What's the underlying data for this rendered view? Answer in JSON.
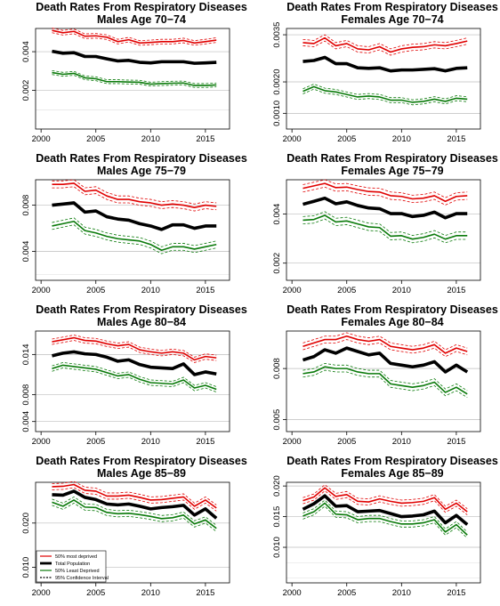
{
  "chart_data": [
    {
      "type": "line",
      "title": "Death Rates From Respiratory Diseases",
      "subtitle": "Males Age 70−74",
      "x": [
        2001,
        2002,
        2003,
        2004,
        2005,
        2006,
        2007,
        2008,
        2009,
        2010,
        2011,
        2012,
        2013,
        2014,
        2015,
        2016
      ],
      "xticks": [
        "2000",
        "2005",
        "2010",
        "2015"
      ],
      "ylim": [
        0,
        0.0052
      ],
      "yticks": [
        "0.002",
        "0.004"
      ],
      "series": [
        {
          "name": "50% most deprived",
          "color": "#e00000",
          "values": [
            0.0051,
            0.00498,
            0.00505,
            0.0048,
            0.00482,
            0.00475,
            0.00452,
            0.00462,
            0.00445,
            0.00448,
            0.00452,
            0.00452,
            0.00458,
            0.00445,
            0.00452,
            0.0046
          ],
          "ci": 0.00012
        },
        {
          "name": "Total Population",
          "color": "#000000",
          "values": [
            0.00402,
            0.00392,
            0.00395,
            0.00375,
            0.00375,
            0.00363,
            0.00352,
            0.00355,
            0.00345,
            0.00342,
            0.00348,
            0.00348,
            0.00348,
            0.0034,
            0.00342,
            0.00345
          ],
          "ci": 0
        },
        {
          "name": "50% Least Deprived",
          "color": "#0a7a0a",
          "values": [
            0.00292,
            0.00283,
            0.00288,
            0.00265,
            0.0026,
            0.00245,
            0.00245,
            0.00243,
            0.00242,
            0.00232,
            0.00235,
            0.00237,
            0.00238,
            0.00225,
            0.00225,
            0.00228
          ],
          "ci": 0.0001
        }
      ]
    },
    {
      "type": "line",
      "title": "Death Rates From Respiratory Diseases",
      "subtitle": "Females Age 70−74",
      "x": [
        2001,
        2002,
        2003,
        2004,
        2005,
        2006,
        2007,
        2008,
        2009,
        2010,
        2011,
        2012,
        2013,
        2014,
        2015,
        2016
      ],
      "xticks": [
        "2000",
        "2005",
        "2010",
        "2015"
      ],
      "ylim": [
        0.0005,
        0.0037
      ],
      "yticks": [
        "0.0010",
        "0.0020",
        "0.0035"
      ],
      "series": [
        {
          "name": "50% most deprived",
          "color": "#e00000",
          "values": [
            0.00325,
            0.00322,
            0.0034,
            0.00315,
            0.00322,
            0.00305,
            0.00302,
            0.00312,
            0.00295,
            0.00305,
            0.0031,
            0.00312,
            0.00318,
            0.00315,
            0.00322,
            0.0033
          ],
          "ci": 0.0001
        },
        {
          "name": "Total Population",
          "color": "#000000",
          "values": [
            0.00265,
            0.00268,
            0.00278,
            0.00258,
            0.00258,
            0.00245,
            0.00243,
            0.00245,
            0.00235,
            0.00238,
            0.00238,
            0.0024,
            0.00242,
            0.00235,
            0.00243,
            0.00245
          ],
          "ci": 0
        },
        {
          "name": "50% Least Deprived",
          "color": "#0a7a0a",
          "values": [
            0.0017,
            0.00185,
            0.00172,
            0.00168,
            0.0016,
            0.00152,
            0.00155,
            0.00152,
            0.00142,
            0.00142,
            0.00135,
            0.00138,
            0.00145,
            0.00138,
            0.00148,
            0.00145
          ],
          "ci": 8e-05
        }
      ]
    },
    {
      "type": "line",
      "title": "Death Rates From Respiratory Diseases",
      "subtitle": "Males Age 75−79",
      "x": [
        2001,
        2002,
        2003,
        2004,
        2005,
        2006,
        2007,
        2008,
        2009,
        2010,
        2011,
        2012,
        2013,
        2014,
        2015,
        2016
      ],
      "xticks": [
        "2000",
        "2005",
        "2010",
        "2015"
      ],
      "ylim": [
        0.0015,
        0.0102
      ],
      "yticks": [
        "0.004",
        "0.008"
      ],
      "series": [
        {
          "name": "50% most deprived",
          "color": "#e00000",
          "values": [
            0.0098,
            0.0098,
            0.0099,
            0.0092,
            0.0093,
            0.0088,
            0.0085,
            0.0085,
            0.0083,
            0.0082,
            0.008,
            0.0081,
            0.008,
            0.0078,
            0.008,
            0.0079
          ],
          "ci": 0.0003
        },
        {
          "name": "Total Population",
          "color": "#000000",
          "values": [
            0.008,
            0.0081,
            0.0082,
            0.0074,
            0.0075,
            0.007,
            0.0068,
            0.0067,
            0.0064,
            0.0062,
            0.0059,
            0.0063,
            0.0063,
            0.006,
            0.0062,
            0.0062
          ],
          "ci": 0
        },
        {
          "name": "50% Least Deprived",
          "color": "#0a7a0a",
          "values": [
            0.0062,
            0.0064,
            0.0066,
            0.0058,
            0.0056,
            0.0053,
            0.0051,
            0.005,
            0.0049,
            0.0046,
            0.0041,
            0.0044,
            0.0044,
            0.0042,
            0.0044,
            0.0046
          ],
          "ci": 0.0003
        }
      ]
    },
    {
      "type": "line",
      "title": "Death Rates From Respiratory Diseases",
      "subtitle": "Females Age 75−79",
      "x": [
        2001,
        2002,
        2003,
        2004,
        2005,
        2006,
        2007,
        2008,
        2009,
        2010,
        2011,
        2012,
        2013,
        2014,
        2015,
        2016
      ],
      "xticks": [
        "2000",
        "2005",
        "2010",
        "2015"
      ],
      "ylim": [
        0.0013,
        0.0054
      ],
      "yticks": [
        "0.002",
        "0.004"
      ],
      "series": [
        {
          "name": "50% most deprived",
          "color": "#e00000",
          "values": [
            0.00505,
            0.00515,
            0.00525,
            0.00508,
            0.0051,
            0.005,
            0.00492,
            0.0049,
            0.00475,
            0.00472,
            0.00462,
            0.00465,
            0.00475,
            0.00452,
            0.00472,
            0.00475
          ],
          "ci": 0.00015
        },
        {
          "name": "Total Population",
          "color": "#000000",
          "values": [
            0.0044,
            0.00452,
            0.00465,
            0.00442,
            0.0045,
            0.00435,
            0.00425,
            0.00422,
            0.00402,
            0.00402,
            0.0039,
            0.00395,
            0.00408,
            0.00385,
            0.00402,
            0.00402
          ],
          "ci": 0
        },
        {
          "name": "50% Least Deprived",
          "color": "#0a7a0a",
          "values": [
            0.00375,
            0.00378,
            0.00395,
            0.00368,
            0.00372,
            0.0036,
            0.00348,
            0.00345,
            0.0031,
            0.00312,
            0.00298,
            0.00305,
            0.00318,
            0.00298,
            0.00312,
            0.00312
          ],
          "ci": 0.00015
        }
      ]
    },
    {
      "type": "line",
      "title": "Death Rates From Respiratory Diseases",
      "subtitle": "Males Age 80−84",
      "x": [
        2001,
        2002,
        2003,
        2004,
        2005,
        2006,
        2007,
        2008,
        2009,
        2010,
        2011,
        2012,
        2013,
        2014,
        2015,
        2016
      ],
      "xticks": [
        "2000",
        "2005",
        "2010",
        "2015"
      ],
      "ylim": [
        0.0025,
        0.0175
      ],
      "yticks": [
        "0.004",
        "0.008",
        "0.014"
      ],
      "series": [
        {
          "name": "50% most deprived",
          "color": "#e00000",
          "values": [
            0.0159,
            0.0162,
            0.0165,
            0.0161,
            0.016,
            0.0156,
            0.0153,
            0.0155,
            0.0147,
            0.0144,
            0.0142,
            0.0144,
            0.0142,
            0.0132,
            0.0137,
            0.0135
          ],
          "ci": 0.0004
        },
        {
          "name": "Total Population",
          "color": "#000000",
          "values": [
            0.0138,
            0.0142,
            0.0144,
            0.0141,
            0.014,
            0.0136,
            0.013,
            0.0132,
            0.0125,
            0.0121,
            0.012,
            0.0119,
            0.0126,
            0.011,
            0.0114,
            0.0111
          ],
          "ci": 0
        },
        {
          "name": "50% Least Deprived",
          "color": "#0a7a0a",
          "values": [
            0.0119,
            0.0124,
            0.0122,
            0.012,
            0.0118,
            0.0113,
            0.0108,
            0.011,
            0.0103,
            0.0098,
            0.0097,
            0.0096,
            0.0102,
            0.009,
            0.0094,
            0.0088
          ],
          "ci": 0.0004
        }
      ]
    },
    {
      "type": "line",
      "title": "Death Rates From Respiratory Diseases",
      "subtitle": "Females Age 80−84",
      "x": [
        2001,
        2002,
        2003,
        2004,
        2005,
        2006,
        2007,
        2008,
        2009,
        2010,
        2011,
        2012,
        2013,
        2014,
        2015,
        2016
      ],
      "xticks": [
        "2000",
        "2005",
        "2010",
        "2015"
      ],
      "ylim": [
        0.0043,
        0.0102
      ],
      "yticks": [
        "0.005",
        "0.008"
      ],
      "series": [
        {
          "name": "50% most deprived",
          "color": "#e00000",
          "values": [
            0.0093,
            0.0095,
            0.0097,
            0.0097,
            0.0099,
            0.0097,
            0.0096,
            0.0097,
            0.0093,
            0.0092,
            0.0091,
            0.0092,
            0.0094,
            0.0089,
            0.0092,
            0.009
          ],
          "ci": 0.0002
        },
        {
          "name": "Total Population",
          "color": "#000000",
          "values": [
            0.0085,
            0.0087,
            0.0091,
            0.0089,
            0.0092,
            0.009,
            0.0088,
            0.0089,
            0.0083,
            0.0082,
            0.0081,
            0.0082,
            0.0084,
            0.0078,
            0.0082,
            0.0078
          ],
          "ci": 0
        },
        {
          "name": "50% Least Deprived",
          "color": "#0a7a0a",
          "values": [
            0.0077,
            0.0078,
            0.0081,
            0.008,
            0.008,
            0.0078,
            0.0077,
            0.0077,
            0.0071,
            0.007,
            0.0069,
            0.007,
            0.0072,
            0.0066,
            0.0069,
            0.0065
          ],
          "ci": 0.0002
        }
      ]
    },
    {
      "type": "line",
      "title": "Death Rates From Respiratory Diseases",
      "subtitle": "Males Age 85−89",
      "x": [
        2001,
        2002,
        2003,
        2004,
        2005,
        2006,
        2007,
        2008,
        2009,
        2010,
        2011,
        2012,
        2013,
        2014,
        2015,
        2016
      ],
      "xticks": [
        "2000",
        "2005",
        "2010",
        "2015"
      ],
      "ylim": [
        0.0065,
        0.0292
      ],
      "yticks": [
        "0.010",
        "0.020"
      ],
      "series": [
        {
          "name": "50% most deprived",
          "color": "#e00000",
          "values": [
            0.0282,
            0.0283,
            0.0287,
            0.0274,
            0.0272,
            0.0261,
            0.0261,
            0.0263,
            0.0258,
            0.0252,
            0.0253,
            0.0256,
            0.0259,
            0.0238,
            0.0252,
            0.0234
          ],
          "ci": 0.0007
        },
        {
          "name": "Total Population",
          "color": "#000000",
          "values": [
            0.0264,
            0.0263,
            0.0272,
            0.0258,
            0.0253,
            0.0243,
            0.0241,
            0.0243,
            0.0238,
            0.0232,
            0.0235,
            0.0237,
            0.024,
            0.0218,
            0.0232,
            0.0211
          ],
          "ci": 0
        },
        {
          "name": "50% Least Deprived",
          "color": "#0a7a0a",
          "values": [
            0.0247,
            0.0238,
            0.0252,
            0.0236,
            0.0235,
            0.0224,
            0.0221,
            0.0222,
            0.0219,
            0.0215,
            0.021,
            0.0212,
            0.0218,
            0.0198,
            0.0207,
            0.0188
          ],
          "ci": 0.0007
        }
      ]
    },
    {
      "type": "line",
      "title": "Death Rates From Respiratory Diseases",
      "subtitle": "Females Age 85−89",
      "x": [
        2001,
        2002,
        2003,
        2004,
        2005,
        2006,
        2007,
        2008,
        2009,
        2010,
        2011,
        2012,
        2013,
        2014,
        2015,
        2016
      ],
      "xticks": [
        "2000",
        "2005",
        "2010",
        "2015"
      ],
      "ylim": [
        0.0042,
        0.0206
      ],
      "yticks": [
        "0.010",
        "0.015",
        "0.020"
      ],
      "series": [
        {
          "name": "50% most deprived",
          "color": "#e00000",
          "values": [
            0.0176,
            0.0182,
            0.0197,
            0.0183,
            0.0186,
            0.0175,
            0.0174,
            0.0179,
            0.0175,
            0.0172,
            0.0173,
            0.0175,
            0.0181,
            0.0162,
            0.0172,
            0.0158
          ],
          "ci": 0.0005
        },
        {
          "name": "Total Population",
          "color": "#000000",
          "values": [
            0.0162,
            0.0171,
            0.0184,
            0.0167,
            0.0168,
            0.0158,
            0.0159,
            0.016,
            0.0155,
            0.015,
            0.0151,
            0.0153,
            0.0159,
            0.014,
            0.0152,
            0.0137
          ],
          "ci": 0
        },
        {
          "name": "50% Least Deprived",
          "color": "#0a7a0a",
          "values": [
            0.0151,
            0.0158,
            0.0172,
            0.0154,
            0.0153,
            0.0145,
            0.0147,
            0.0147,
            0.0142,
            0.0138,
            0.0138,
            0.014,
            0.0145,
            0.0125,
            0.0137,
            0.012
          ],
          "ci": 0.0005
        }
      ]
    }
  ],
  "legend": {
    "placement": "bottom-left",
    "items": [
      {
        "label": "50% most deprived",
        "color": "#e00000",
        "style": "solid"
      },
      {
        "label": "Total Population",
        "color": "#000000",
        "style": "thick"
      },
      {
        "label": "50% Least Deprived",
        "color": "#0a7a0a",
        "style": "solid"
      },
      {
        "label": "95% Confidence Interval",
        "color": "#000000",
        "style": "dashed"
      }
    ]
  }
}
